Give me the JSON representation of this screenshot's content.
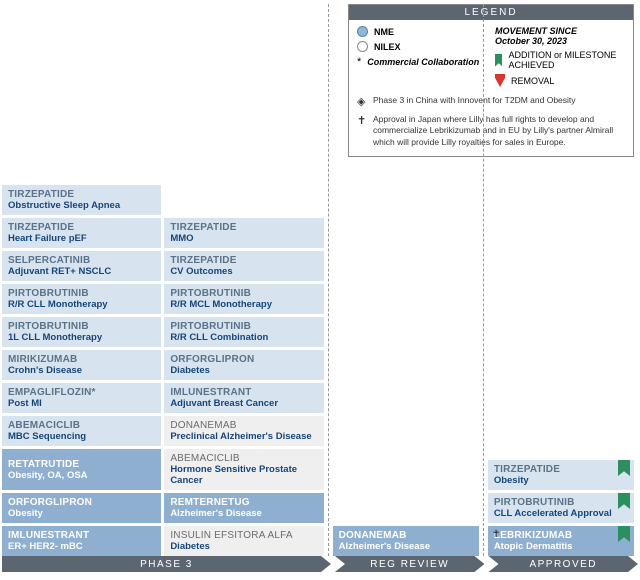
{
  "legend": {
    "title": "LEGEND",
    "nme": "NME",
    "nilex": "NILEX",
    "collab": "Commercial Collaboration",
    "movement_since_label": "MOVEMENT SINCE",
    "movement_since_date": "October 30, 2023",
    "addition": "ADDITION or MILESTONE ACHIEVED",
    "removal": "REMOVAL",
    "note_diamond": "Phase 3 in China with Innovent for T2DM and Obesity",
    "note_cross": "Approval in Japan where Lilly has full rights to develop and commercialize Lebrikizumab and in EU by Lilly's partner Almirall which will provide Lilly royalties for sales in Europe."
  },
  "phases": {
    "p3": "PHASE 3",
    "reg": "REG REVIEW",
    "app": "APPROVED"
  },
  "colors": {
    "nme_bg": "#d7e4f0",
    "nme_dark_bg": "#8fafd0",
    "nilex_bg": "#efefef",
    "brand_text": "#17457a",
    "bar": "#5b6670",
    "ribbon_green": "#2b8f5f",
    "ribbon_red": "#d9372b"
  },
  "phase3": [
    {
      "name": "TIRZEPATIDE",
      "ind": "Obstructive Sleep Apnea",
      "cls": "nme",
      "span": 1
    },
    null,
    {
      "name": "TIRZEPATIDE",
      "ind": "Heart Failure pEF",
      "cls": "nme"
    },
    {
      "name": "TIRZEPATIDE",
      "ind": "MMO",
      "cls": "nme"
    },
    {
      "name": "SELPERCATINIB",
      "ind": "Adjuvant RET+ NSCLC",
      "cls": "nme"
    },
    {
      "name": "TIRZEPATIDE",
      "ind": "CV Outcomes",
      "cls": "nme"
    },
    {
      "name": "PIRTOBRUTINIB",
      "ind": "R/R CLL Monotherapy",
      "cls": "nme"
    },
    {
      "name": "PIRTOBRUTINIB",
      "ind": "R/R MCL Monotherapy",
      "cls": "nme"
    },
    {
      "name": "PIRTOBRUTINIB",
      "ind": "1L CLL Monotherapy",
      "cls": "nme"
    },
    {
      "name": "PIRTOBRUTINIB",
      "ind": "R/R CLL Combination",
      "cls": "nme"
    },
    {
      "name": "MIRIKIZUMAB",
      "ind": "Crohn's Disease",
      "cls": "nme"
    },
    {
      "name": "ORFORGLIPRON",
      "ind": "Diabetes",
      "cls": "nme"
    },
    {
      "name": "EMPAGLIFLOZIN*",
      "ind": "Post MI",
      "cls": "nme"
    },
    {
      "name": "IMLUNESTRANT",
      "ind": "Adjuvant Breast Cancer",
      "cls": "nme"
    },
    {
      "name": "ABEMACICLIB",
      "ind": "MBC Sequencing",
      "cls": "nme"
    },
    {
      "name": "DONANEMAB",
      "ind": "Preclinical Alzheimer's Disease",
      "cls": "nilex"
    },
    {
      "name": "RETATRUTIDE",
      "ind": "Obesity, OA, OSA",
      "cls": "nme-dark"
    },
    {
      "name": "ABEMACICLIB",
      "ind": "Hormone Sensitive Prostate Cancer",
      "cls": "nilex"
    },
    {
      "name": "ORFORGLIPRON",
      "ind": "Obesity",
      "cls": "nme-dark"
    },
    {
      "name": "REMTERNETUG",
      "ind": "Alzheimer's Disease",
      "cls": "nme-dark"
    },
    {
      "name": "IMLUNESTRANT",
      "ind": "ER+ HER2- mBC",
      "cls": "nme-dark"
    },
    {
      "name": "INSULIN EFSITORA ALFA",
      "ind": "Diabetes",
      "cls": "nilex"
    }
  ],
  "reg": [
    {
      "name": "DONANEMAB",
      "ind": "Alzheimer's Disease",
      "cls": "nme-dark"
    }
  ],
  "approved": [
    {
      "name": "TIRZEPATIDE",
      "ind": "Obesity",
      "cls": "nme",
      "ribbon": true
    },
    {
      "name": "PIRTOBRUTINIB",
      "ind": "CLL Accelerated Approval",
      "cls": "nme",
      "ribbon": true
    },
    {
      "name": "LEBRIKIZUMAB",
      "ind": "Atopic Dermatitis",
      "cls": "nme-dark",
      "ribbon": true,
      "sym": "✝"
    }
  ]
}
